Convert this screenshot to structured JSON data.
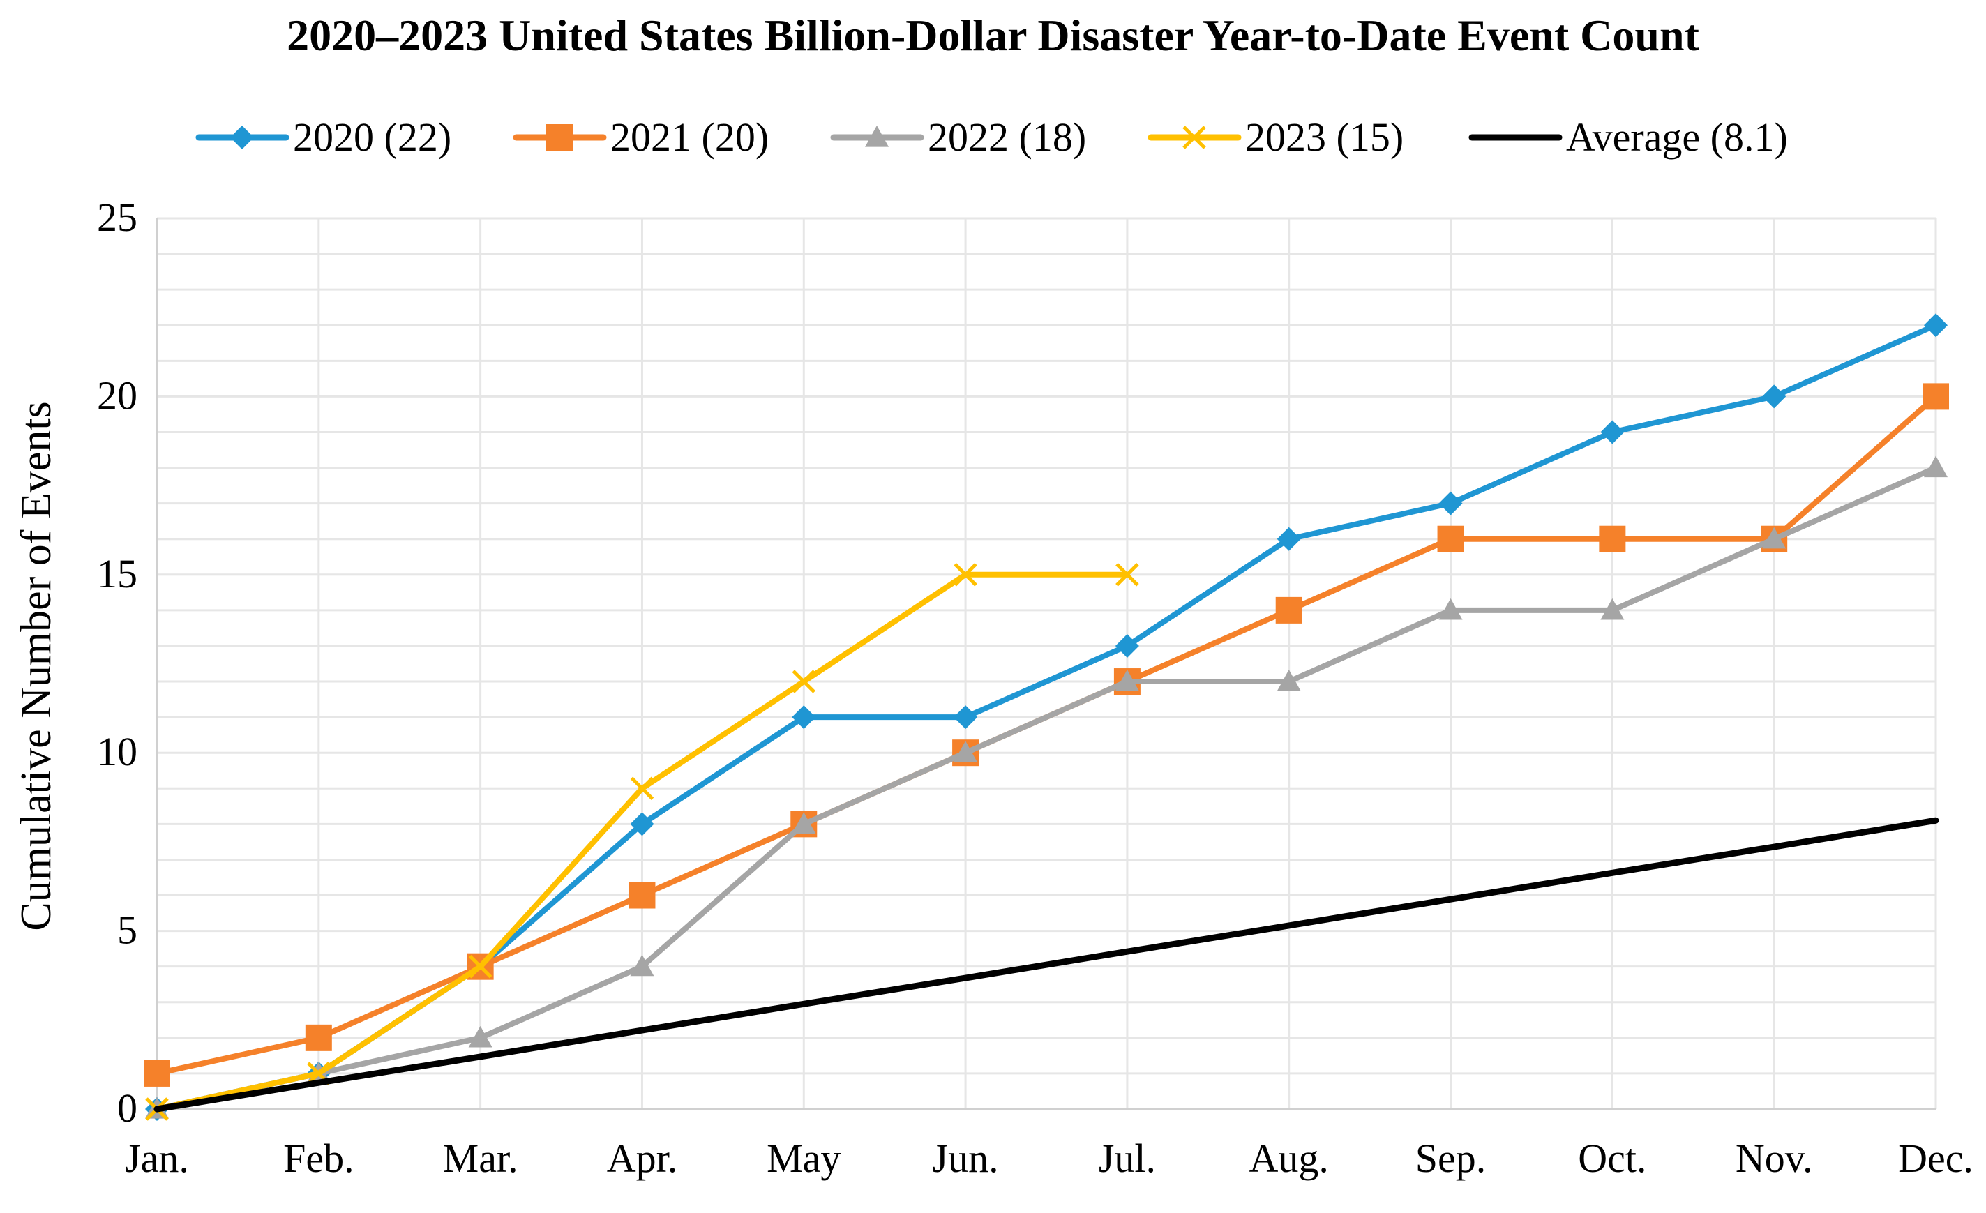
{
  "chart_data": {
    "type": "line",
    "title": "2020–2023 United States Billion-Dollar Disaster Year-to-Date  Event Count",
    "xlabel": "",
    "ylabel": "Cumulative Number of Events",
    "categories": [
      "Jan.",
      "Feb.",
      "Mar.",
      "Apr.",
      "May",
      "Jun.",
      "Jul.",
      "Aug.",
      "Sep.",
      "Oct.",
      "Nov.",
      "Dec."
    ],
    "ylim": [
      0,
      25
    ],
    "yticks": [
      0,
      5,
      10,
      15,
      20,
      25
    ],
    "grid": true,
    "legend_position": "top",
    "series": [
      {
        "name": "2020 (22)",
        "color": "#1f96d3",
        "marker": "diamond",
        "values": [
          0,
          1,
          4,
          8,
          11,
          11,
          13,
          16,
          17,
          19,
          20,
          22
        ]
      },
      {
        "name": "2021 (20)",
        "color": "#f5812a",
        "marker": "square",
        "values": [
          1,
          2,
          4,
          6,
          8,
          10,
          12,
          14,
          16,
          16,
          16,
          20
        ]
      },
      {
        "name": "2022 (18)",
        "color": "#a5a5a5",
        "marker": "triangle",
        "values": [
          0,
          1,
          2,
          4,
          8,
          10,
          12,
          12,
          14,
          14,
          16,
          18
        ]
      },
      {
        "name": "2023 (15)",
        "color": "#ffc000",
        "marker": "x",
        "values": [
          0,
          1,
          4,
          9,
          12,
          15,
          15,
          null,
          null,
          null,
          null,
          null
        ]
      },
      {
        "name": "Average (8.1)",
        "color": "#000000",
        "marker": "none",
        "values": [
          0,
          0.74,
          1.47,
          2.21,
          2.95,
          3.68,
          4.42,
          5.15,
          5.89,
          6.63,
          7.36,
          8.1
        ]
      }
    ]
  }
}
